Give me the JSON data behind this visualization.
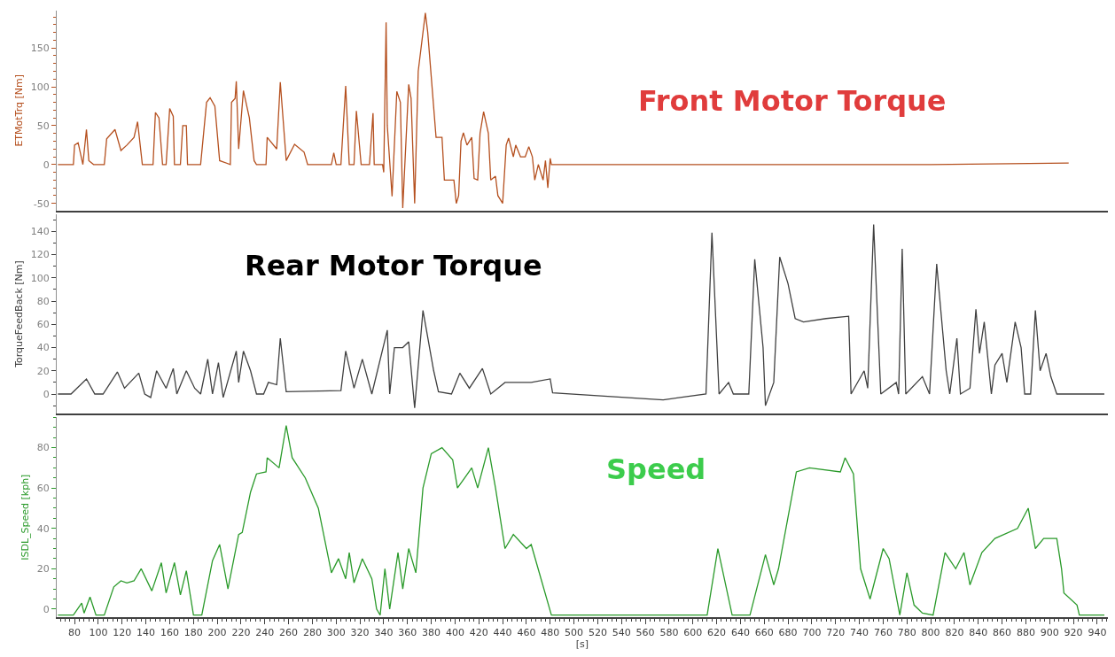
{
  "chart_data": [
    {
      "type": "line",
      "annotations": [
        "Front Motor Torque"
      ],
      "ylabel": "ETMotTrq [Nm]",
      "color": "#b5501f",
      "xlim": [
        65,
        949
      ],
      "ylim": [
        -59,
        198
      ],
      "yticks": [
        -50,
        0,
        50,
        100,
        150
      ],
      "tick_labels": "y",
      "line_style": "solid",
      "x": [
        66,
        79,
        80,
        83,
        87,
        90,
        92,
        96,
        105,
        107,
        114,
        119,
        124,
        130,
        133,
        137,
        146,
        148,
        151,
        154,
        157,
        160,
        163,
        164,
        169,
        171,
        174,
        175,
        186,
        191,
        194,
        198,
        202,
        211,
        212,
        215,
        216,
        218,
        222,
        227,
        231,
        233,
        241,
        242,
        250,
        253,
        258,
        265,
        273,
        276,
        296,
        298,
        300,
        304,
        308,
        311,
        315,
        317,
        321,
        328,
        331,
        332,
        339,
        340,
        342,
        343,
        347,
        351,
        354,
        356,
        361,
        363,
        366,
        369,
        375,
        377,
        384,
        389,
        391,
        399,
        401,
        403,
        405,
        407,
        410,
        414,
        416,
        419,
        421,
        424,
        428,
        430,
        434,
        436,
        440,
        443,
        445,
        449,
        451,
        455,
        459,
        462,
        465,
        467,
        470,
        474,
        476,
        478,
        480,
        481,
        600,
        700,
        800,
        916
      ],
      "values": [
        0,
        0,
        25,
        28,
        0,
        45,
        5,
        0,
        0,
        33,
        45,
        18,
        25,
        35,
        55,
        0,
        0,
        67,
        60,
        0,
        0,
        72,
        62,
        0,
        0,
        50,
        50,
        0,
        0,
        80,
        86,
        75,
        5,
        0,
        80,
        85,
        107,
        20,
        95,
        60,
        5,
        0,
        0,
        35,
        20,
        106,
        5,
        26,
        16,
        0,
        0,
        15,
        0,
        0,
        101,
        0,
        0,
        69,
        0,
        0,
        66,
        0,
        0,
        -10,
        183,
        50,
        -41,
        94,
        80,
        -56,
        103,
        85,
        -50,
        120,
        195,
        170,
        35,
        35,
        -20,
        -20,
        -50,
        -40,
        30,
        41,
        25,
        35,
        -18,
        -20,
        40,
        68,
        40,
        -20,
        -15,
        -40,
        -50,
        25,
        34,
        10,
        25,
        10,
        10,
        23,
        10,
        -20,
        0,
        -20,
        5,
        -30,
        8,
        0,
        0,
        0,
        0,
        2
      ]
    },
    {
      "type": "line",
      "annotations": [
        "Rear Motor Torque"
      ],
      "ylabel": "TorqueFeedBack [Nm]",
      "color": "#404040",
      "xlim": [
        65,
        949
      ],
      "ylim": [
        -17,
        155
      ],
      "yticks": [
        0,
        20,
        40,
        60,
        80,
        100,
        120,
        140
      ],
      "tick_labels": "y",
      "line_style": "solid",
      "x": [
        66,
        77,
        90,
        97,
        104,
        116,
        122,
        134,
        139,
        144,
        149,
        157,
        163,
        166,
        174,
        181,
        186,
        192,
        196,
        201,
        205,
        216,
        218,
        222,
        228,
        233,
        239,
        243,
        250,
        253,
        258,
        304,
        308,
        315,
        322,
        330,
        343,
        345,
        349,
        356,
        361,
        366,
        373,
        382,
        386,
        397,
        404,
        412,
        423,
        430,
        442,
        464,
        480,
        482,
        575,
        611,
        616,
        622,
        630,
        634,
        647,
        652,
        659,
        661,
        668,
        673,
        680,
        686,
        693,
        712,
        731,
        733,
        744,
        747,
        752,
        758,
        771,
        773,
        776,
        779,
        793,
        799,
        805,
        813,
        816,
        822,
        825,
        833,
        838,
        841,
        845,
        851,
        854,
        860,
        864,
        871,
        876,
        879,
        884,
        888,
        892,
        897,
        901,
        906,
        946
      ],
      "values": [
        0,
        0,
        13,
        0,
        0,
        19,
        5,
        18,
        0,
        -3,
        20,
        5,
        22,
        0,
        20,
        5,
        0,
        30,
        0,
        27,
        -3,
        37,
        10,
        37,
        20,
        0,
        0,
        10,
        8,
        48,
        2,
        3,
        37,
        5,
        30,
        0,
        55,
        0,
        40,
        40,
        45,
        -12,
        72,
        20,
        2,
        0,
        18,
        5,
        22,
        0,
        10,
        10,
        13,
        1,
        -5,
        0,
        139,
        0,
        10,
        0,
        0,
        116,
        40,
        -10,
        10,
        118,
        95,
        65,
        62,
        65,
        67,
        0,
        20,
        5,
        146,
        0,
        10,
        0,
        125,
        0,
        15,
        0,
        112,
        20,
        0,
        48,
        0,
        5,
        73,
        35,
        62,
        0,
        25,
        35,
        10,
        62,
        40,
        0,
        0,
        72,
        20,
        35,
        15,
        0,
        0
      ]
    },
    {
      "type": "line",
      "annotations": [
        "Speed"
      ],
      "ylabel": "ISDL_Speed [kph]",
      "xlabel": "[s]",
      "color": "#2a9a2a",
      "xlim": [
        65,
        949
      ],
      "ylim": [
        -4,
        95
      ],
      "yticks": [
        0,
        20,
        40,
        60,
        80
      ],
      "xticks": [
        80,
        100,
        120,
        140,
        160,
        180,
        200,
        220,
        240,
        260,
        280,
        300,
        320,
        340,
        360,
        380,
        400,
        420,
        440,
        460,
        480,
        500,
        520,
        540,
        560,
        580,
        600,
        620,
        640,
        660,
        680,
        700,
        720,
        740,
        760,
        780,
        800,
        820,
        840,
        860,
        880,
        900,
        920,
        940
      ],
      "line_style": "solid",
      "x": [
        66,
        79,
        86,
        88,
        93,
        98,
        105,
        113,
        119,
        124,
        130,
        136,
        145,
        153,
        157,
        164,
        169,
        174,
        180,
        187,
        196,
        202,
        209,
        218,
        221,
        228,
        233,
        241,
        242,
        252,
        258,
        263,
        274,
        285,
        296,
        302,
        308,
        311,
        315,
        322,
        330,
        334,
        337,
        341,
        345,
        352,
        356,
        361,
        367,
        373,
        380,
        389,
        398,
        402,
        408,
        414,
        419,
        428,
        434,
        442,
        449,
        460,
        464,
        481,
        612,
        621,
        633,
        648,
        661,
        668,
        672,
        687,
        698,
        724,
        728,
        735,
        741,
        749,
        760,
        765,
        774,
        780,
        786,
        793,
        802,
        812,
        821,
        828,
        833,
        843,
        854,
        873,
        882,
        888,
        895,
        906,
        910,
        912,
        923,
        925,
        946
      ],
      "values": [
        -3,
        -3,
        3,
        -2,
        6,
        -3,
        -3,
        11,
        14,
        13,
        14,
        20,
        9,
        23,
        8,
        23,
        7,
        19,
        -3,
        -3,
        24,
        32,
        10,
        37,
        38,
        58,
        67,
        68,
        75,
        70,
        91,
        75,
        65,
        50,
        18,
        25,
        15,
        28,
        13,
        25,
        15,
        0,
        -3,
        20,
        0,
        28,
        10,
        30,
        18,
        60,
        77,
        80,
        74,
        60,
        65,
        70,
        60,
        80,
        60,
        30,
        37,
        30,
        32,
        -3,
        -3,
        30,
        -3,
        -3,
        27,
        12,
        20,
        68,
        70,
        68,
        75,
        67,
        20,
        5,
        30,
        25,
        -3,
        18,
        2,
        -2,
        -3,
        28,
        20,
        28,
        12,
        28,
        35,
        40,
        50,
        30,
        35,
        35,
        20,
        8,
        2,
        -3,
        -3
      ]
    }
  ]
}
